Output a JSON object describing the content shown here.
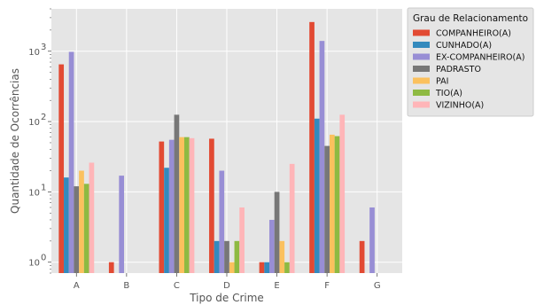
{
  "chart_data": {
    "type": "bar",
    "xlabel": "Tipo de Crime",
    "ylabel": "Quantidade de Ocorrências",
    "yscale": "log",
    "ylim": [
      0.7,
      4000
    ],
    "yticks": [
      {
        "value": 1,
        "label": "10",
        "exp": "0"
      },
      {
        "value": 10,
        "label": "10",
        "exp": "1"
      },
      {
        "value": 100,
        "label": "10",
        "exp": "2"
      },
      {
        "value": 1000,
        "label": "10",
        "exp": "3"
      }
    ],
    "grid": true,
    "legend_title": "Grau de Relacionamento",
    "legend_position": "outside-top-right",
    "categories": [
      "A",
      "B",
      "C",
      "D",
      "E",
      "F",
      "G"
    ],
    "series": [
      {
        "name": "COMPANHEIRO(A)",
        "color": "#E24A33",
        "values": [
          650,
          1,
          52,
          57,
          1,
          2600,
          2
        ]
      },
      {
        "name": "CUNHADO(A)",
        "color": "#348ABD",
        "values": [
          16,
          null,
          22,
          2,
          1,
          110,
          null
        ]
      },
      {
        "name": "EX-COMPANHEIRO(A)",
        "color": "#988ED5",
        "values": [
          980,
          17,
          55,
          20,
          4,
          1400,
          6
        ]
      },
      {
        "name": "PADRASTO",
        "color": "#777777",
        "values": [
          12,
          null,
          125,
          2,
          10,
          45,
          null
        ]
      },
      {
        "name": "PAI",
        "color": "#FBC15E",
        "values": [
          20,
          null,
          60,
          1,
          2,
          65,
          null
        ]
      },
      {
        "name": "TIO(A)",
        "color": "#8EBA42",
        "values": [
          13,
          null,
          60,
          2,
          1,
          62,
          null
        ]
      },
      {
        "name": "VIZINHO(A)",
        "color": "#FFB5B8",
        "values": [
          26,
          null,
          58,
          6,
          25,
          125,
          null
        ]
      }
    ]
  }
}
